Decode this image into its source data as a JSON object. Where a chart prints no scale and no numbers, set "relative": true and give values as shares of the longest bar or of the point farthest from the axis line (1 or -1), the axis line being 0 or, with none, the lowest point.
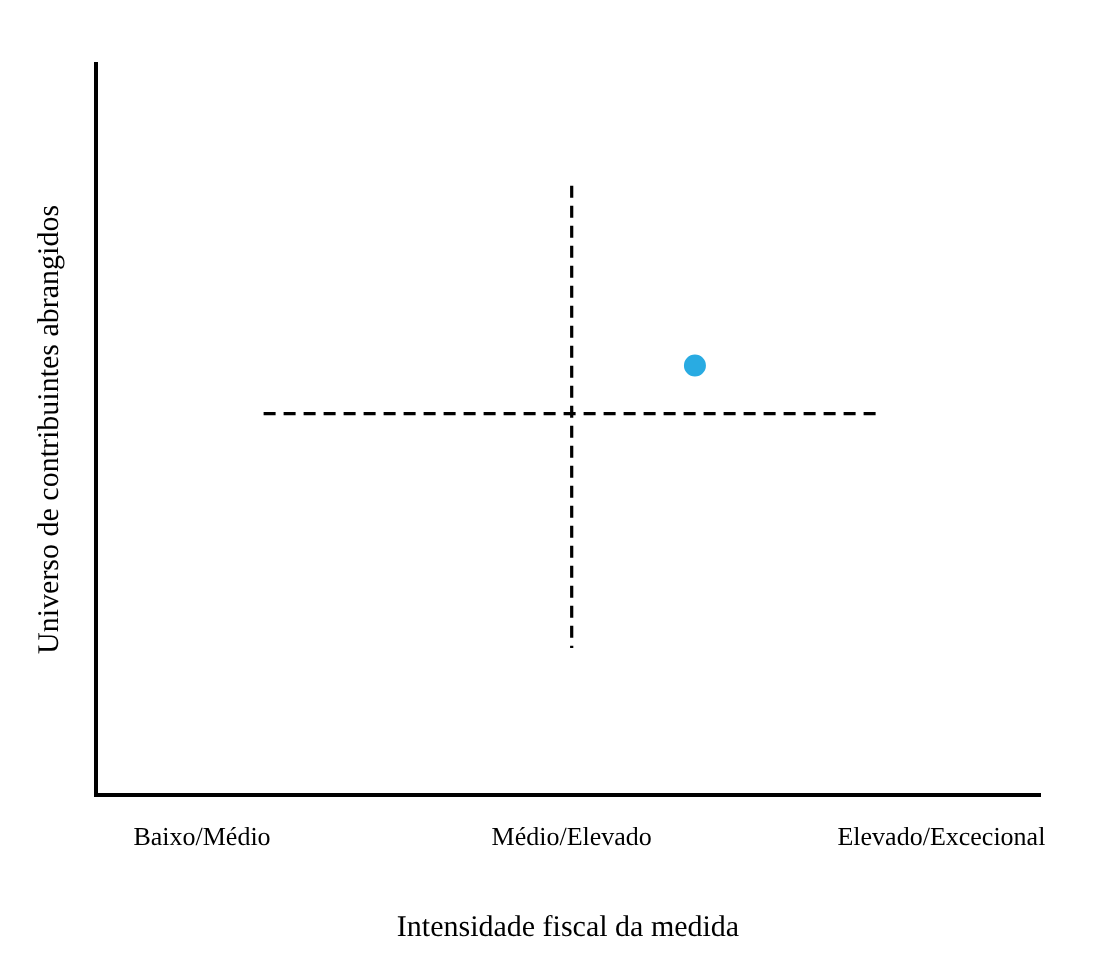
{
  "chart_data": {
    "type": "scatter",
    "relative": true,
    "xlabel": "Intensidade fiscal da medida",
    "ylabel": "Universo de contribuintes abrangidos",
    "categories": [
      "Baixo/Médio",
      null,
      null,
      null,
      null,
      null,
      "Médio/Elevado",
      null,
      null,
      null,
      null,
      null,
      "Elevado/Excecional"
    ],
    "series": [
      {
        "type": "line",
        "color": "#000000",
        "line_style": "dashed",
        "marker": "none",
        "values": [
          null,
          0.626,
          0.626,
          0.626,
          0.626,
          0.626,
          0.626,
          0.626,
          0.626,
          0.626,
          0.626,
          0.626,
          null
        ]
      },
      {
        "type": "line",
        "color": "#000000",
        "line_style": "dashed",
        "marker": "none",
        "x": [
          "Médio/Elevado",
          "Médio/Elevado"
        ],
        "values": [
          1,
          0.241
        ]
      },
      {
        "type": "scatter",
        "color": "#29abe2",
        "marker": "circle",
        "values": [
          null,
          null,
          null,
          null,
          null,
          null,
          null,
          null,
          0.705,
          null,
          null,
          null,
          null
        ]
      }
    ],
    "grid": false,
    "legend": false
  }
}
